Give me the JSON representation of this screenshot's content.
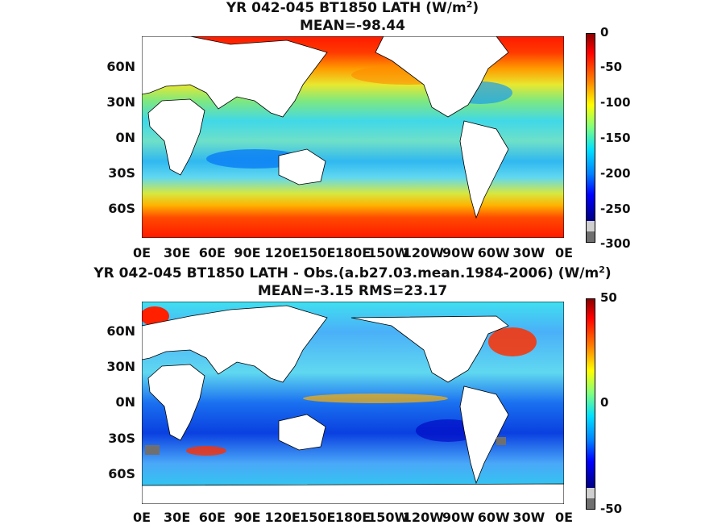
{
  "panels": [
    {
      "title_line1": "YR 042-045 BT1850  LATH (W/m",
      "title_sup": "2",
      "title_close": ")",
      "title_line2": "MEAN=-98.44",
      "colorbar_labels": [
        "0",
        "-50",
        "-100",
        "-150",
        "-200",
        "-250",
        "-300"
      ],
      "colorbar_range": [
        -300,
        0
      ]
    },
    {
      "title_line1": "YR 042-045 BT1850 LATH - Obs.(a.b27.03.mean.1984-2006) (W/m",
      "title_sup": "2",
      "title_close": ")",
      "title_line2": "MEAN=-3.15 RMS=23.17",
      "colorbar_labels": [
        "50",
        "0",
        "-50"
      ],
      "colorbar_range": [
        -50,
        50
      ]
    }
  ],
  "x_ticks": [
    "0E",
    "30E",
    "60E",
    "90E",
    "120E",
    "150E",
    "180E",
    "150W",
    "120W",
    "90W",
    "60W",
    "30W",
    "0E"
  ],
  "y_ticks_top": [
    "60N",
    "30N",
    "0N",
    "30S",
    "60S"
  ],
  "y_ticks_bottom": [
    "60N",
    "30N",
    "0N",
    "30S",
    "60S"
  ],
  "colors": {
    "land": "#ffffff",
    "missing": "#6f6f6f",
    "ocean_top_base": "#5fd2f0",
    "ocean_bottom_base": "#2f8cf2"
  }
}
